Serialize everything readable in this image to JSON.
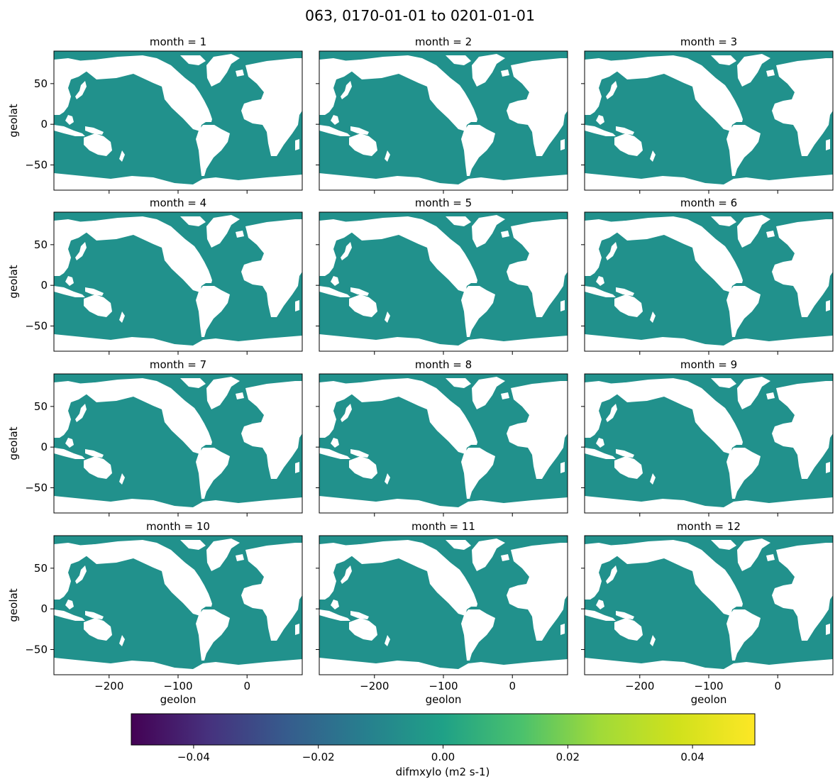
{
  "title": "063, 0170-01-01 to 0201-01-01",
  "colors": {
    "ocean": "#21918c",
    "land": "#ffffff",
    "frame": "#000000"
  },
  "chart_data": {
    "type": "heatmap",
    "facet_by": "month",
    "panels": [
      {
        "title": "month = 1",
        "month": 1
      },
      {
        "title": "month = 2",
        "month": 2
      },
      {
        "title": "month = 3",
        "month": 3
      },
      {
        "title": "month = 4",
        "month": 4
      },
      {
        "title": "month = 5",
        "month": 5
      },
      {
        "title": "month = 6",
        "month": 6
      },
      {
        "title": "month = 7",
        "month": 7
      },
      {
        "title": "month = 8",
        "month": 8
      },
      {
        "title": "month = 9",
        "month": 9
      },
      {
        "title": "month = 10",
        "month": 10
      },
      {
        "title": "month = 11",
        "month": 11
      },
      {
        "title": "month = 12",
        "month": 12
      }
    ],
    "field_value": 0.0,
    "xlabel": "geolon",
    "ylabel": "geolat",
    "xlim": [
      -280,
      80
    ],
    "ylim": [
      -81,
      90
    ],
    "xticks": [
      -200,
      -100,
      0
    ],
    "xtick_labels": [
      "−200",
      "−100",
      "0"
    ],
    "yticks": [
      -50,
      0,
      50
    ],
    "ytick_labels": [
      "−50",
      "0",
      "50"
    ],
    "colorbar": {
      "label": "difmxylo (m2 s-1)",
      "vmin": -0.05,
      "vmax": 0.05,
      "ticks": [
        -0.04,
        -0.02,
        0.0,
        0.02,
        0.04
      ],
      "tick_labels": [
        "−0.04",
        "−0.02",
        "0.00",
        "0.02",
        "0.04"
      ],
      "colormap": "viridis",
      "orientation": "horizontal",
      "placement": "bottom"
    }
  }
}
